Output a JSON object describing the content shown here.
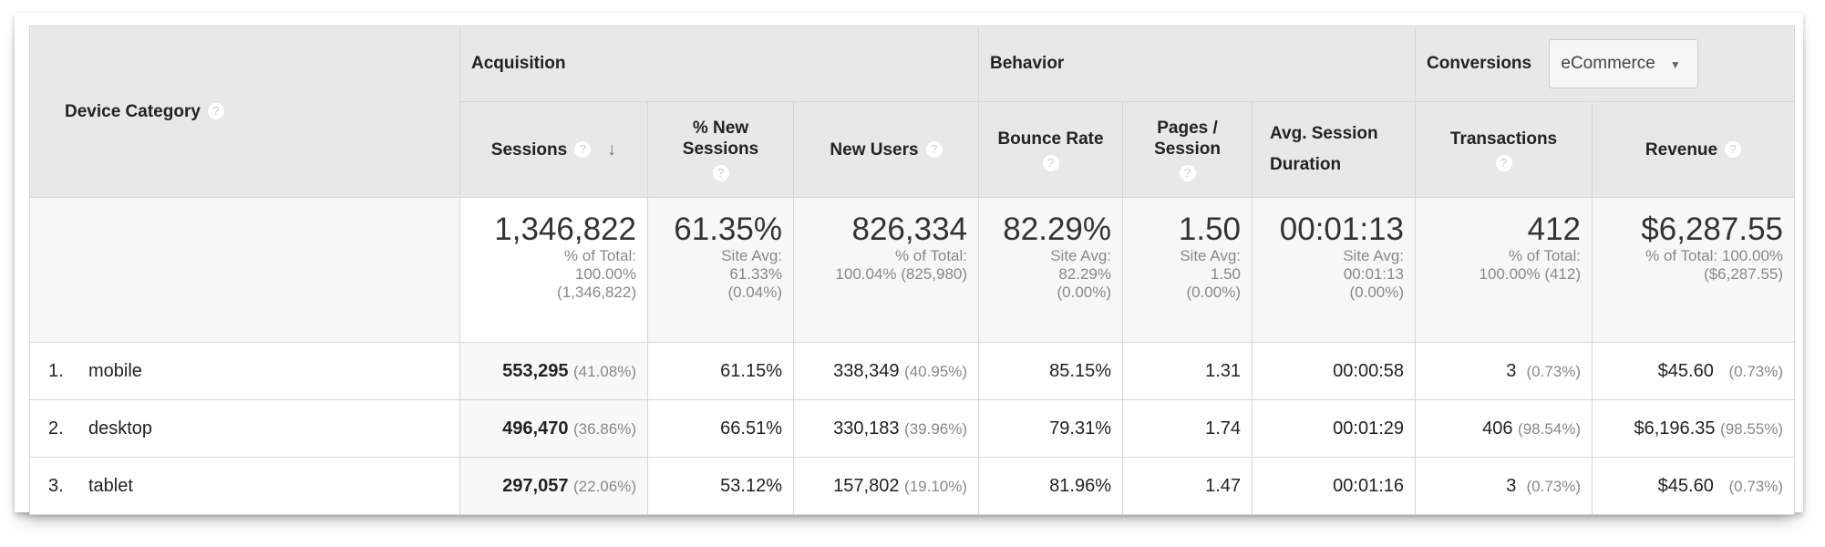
{
  "header": {
    "dimension": "Device Category",
    "groups": {
      "acquisition": "Acquisition",
      "behavior": "Behavior",
      "conversions": "Conversions"
    },
    "conversions_select": "eCommerce",
    "columns": [
      "Sessions",
      "% New Sessions",
      "New Users",
      "Bounce Rate",
      "Pages / Session",
      "Avg. Session Duration",
      "Transactions",
      "Revenue"
    ],
    "help_icon": "?",
    "sort_icon": "↓",
    "dropdown_icon": "▼"
  },
  "totals": [
    {
      "value": "1,346,822",
      "l1": "% of Total:",
      "l2": "100.00%",
      "l3": "(1,346,822)"
    },
    {
      "value": "61.35%",
      "l1": "Site Avg:",
      "l2": "61.33%",
      "l3": "(0.04%)"
    },
    {
      "value": "826,334",
      "l1": "% of Total:",
      "l2": "100.04% (825,980)",
      "l3": ""
    },
    {
      "value": "82.29%",
      "l1": "Site Avg:",
      "l2": "82.29%",
      "l3": "(0.00%)"
    },
    {
      "value": "1.50",
      "l1": "Site Avg:",
      "l2": "1.50",
      "l3": "(0.00%)"
    },
    {
      "value": "00:01:13",
      "l1": "Site Avg:",
      "l2": "00:01:13",
      "l3": "(0.00%)"
    },
    {
      "value": "412",
      "l1": "% of Total:",
      "l2": "100.00% (412)",
      "l3": ""
    },
    {
      "value": "$6,287.55",
      "l1": "% of Total: 100.00%",
      "l2": "($6,287.55)",
      "l3": ""
    }
  ],
  "rows": [
    {
      "rank": "1.",
      "device": "mobile",
      "sessions": "553,295",
      "sessions_pct": "(41.08%)",
      "new_sessions": "61.15%",
      "new_users": "338,349",
      "new_users_pct": "(40.95%)",
      "bounce": "85.15%",
      "pages": "1.31",
      "duration": "00:00:58",
      "transactions": "3",
      "transactions_pct": "(0.73%)",
      "revenue": "$45.60",
      "revenue_pct": "(0.73%)"
    },
    {
      "rank": "2.",
      "device": "desktop",
      "sessions": "496,470",
      "sessions_pct": "(36.86%)",
      "new_sessions": "66.51%",
      "new_users": "330,183",
      "new_users_pct": "(39.96%)",
      "bounce": "79.31%",
      "pages": "1.74",
      "duration": "00:01:29",
      "transactions": "406",
      "transactions_pct": "(98.54%)",
      "revenue": "$6,196.35",
      "revenue_pct": "(98.55%)"
    },
    {
      "rank": "3.",
      "device": "tablet",
      "sessions": "297,057",
      "sessions_pct": "(22.06%)",
      "new_sessions": "53.12%",
      "new_users": "157,802",
      "new_users_pct": "(19.10%)",
      "bounce": "81.96%",
      "pages": "1.47",
      "duration": "00:01:16",
      "transactions": "3",
      "transactions_pct": "(0.73%)",
      "revenue": "$45.60",
      "revenue_pct": "(0.73%)"
    }
  ]
}
